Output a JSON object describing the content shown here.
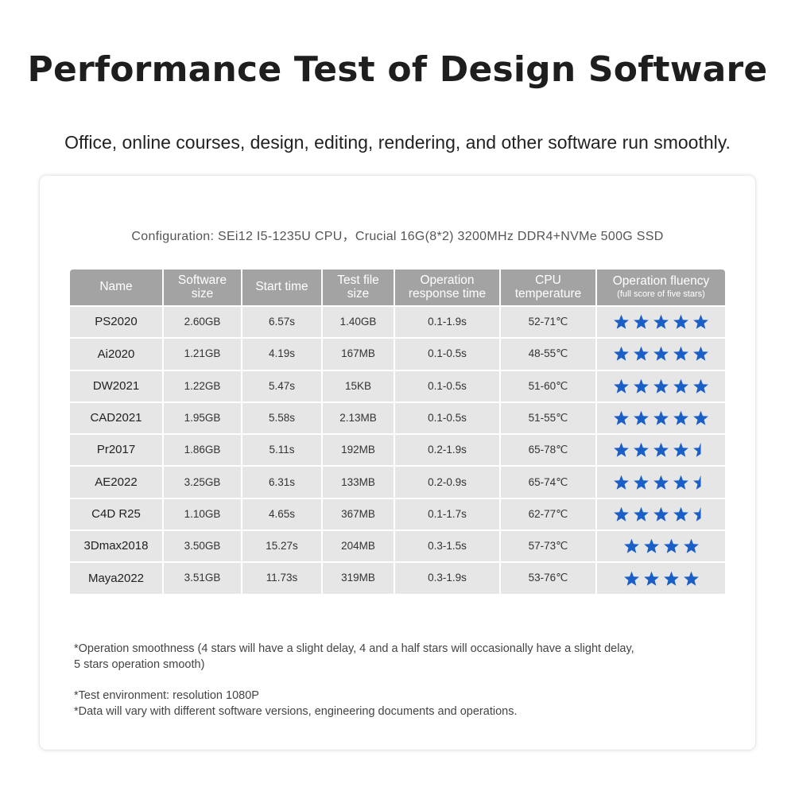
{
  "title": "Performance Test of Design Software",
  "subtitle": "Office, online courses, design, editing, rendering, and other software run smoothly.",
  "configuration": "Configuration: SEi12 I5-1235U CPU，Crucial 16G(8*2) 3200MHz DDR4+NVMe 500G SSD",
  "colors": {
    "header_bg": "#a3a3a3",
    "row_bg": "#e6e6e6",
    "star": "#1a5fc8"
  },
  "table": {
    "headers": {
      "name": "Name",
      "software_size_1": "Software",
      "software_size_2": "size",
      "start_time": "Start time",
      "test_file_1": "Test file",
      "test_file_2": "size",
      "response_1": "Operation",
      "response_2": "response time",
      "cpu_1": "CPU",
      "cpu_2": "temperature",
      "fluency_1": "Operation fluency",
      "fluency_2": "(full score of five stars)"
    },
    "rows": [
      {
        "name": "PS2020",
        "size": "2.60GB",
        "start": "6.57s",
        "file": "1.40GB",
        "response": "0.1-1.9s",
        "cpu": "52-71℃",
        "stars": 5
      },
      {
        "name": "Ai2020",
        "size": "1.21GB",
        "start": "4.19s",
        "file": "167MB",
        "response": "0.1-0.5s",
        "cpu": "48-55℃",
        "stars": 5
      },
      {
        "name": "DW2021",
        "size": "1.22GB",
        "start": "5.47s",
        "file": "15KB",
        "response": "0.1-0.5s",
        "cpu": "51-60℃",
        "stars": 5
      },
      {
        "name": "CAD2021",
        "size": "1.95GB",
        "start": "5.58s",
        "file": "2.13MB",
        "response": "0.1-0.5s",
        "cpu": "51-55℃",
        "stars": 5
      },
      {
        "name": "Pr2017",
        "size": "1.86GB",
        "start": "5.11s",
        "file": "192MB",
        "response": "0.2-1.9s",
        "cpu": "65-78℃",
        "stars": 4.5
      },
      {
        "name": "AE2022",
        "size": "3.25GB",
        "start": "6.31s",
        "file": "133MB",
        "response": "0.2-0.9s",
        "cpu": "65-74℃",
        "stars": 4.5
      },
      {
        "name": "C4D R25",
        "size": "1.10GB",
        "start": "4.65s",
        "file": "367MB",
        "response": "0.1-1.7s",
        "cpu": "62-77℃",
        "stars": 4.5
      },
      {
        "name": "3Dmax2018",
        "size": "3.50GB",
        "start": "15.27s",
        "file": "204MB",
        "response": "0.3-1.5s",
        "cpu": "57-73℃",
        "stars": 4
      },
      {
        "name": "Maya2022",
        "size": "3.51GB",
        "start": "11.73s",
        "file": "319MB",
        "response": "0.3-1.9s",
        "cpu": "53-76℃",
        "stars": 4
      }
    ]
  },
  "footnotes": {
    "smoothness_1": "*Operation smoothness (4 stars will have a slight delay, 4 and a half stars will occasionally have a slight delay,",
    "smoothness_2": "5 stars operation smooth)",
    "environment": "*Test environment: resolution 1080P",
    "variance": "*Data will vary with different software versions, engineering documents and operations."
  }
}
